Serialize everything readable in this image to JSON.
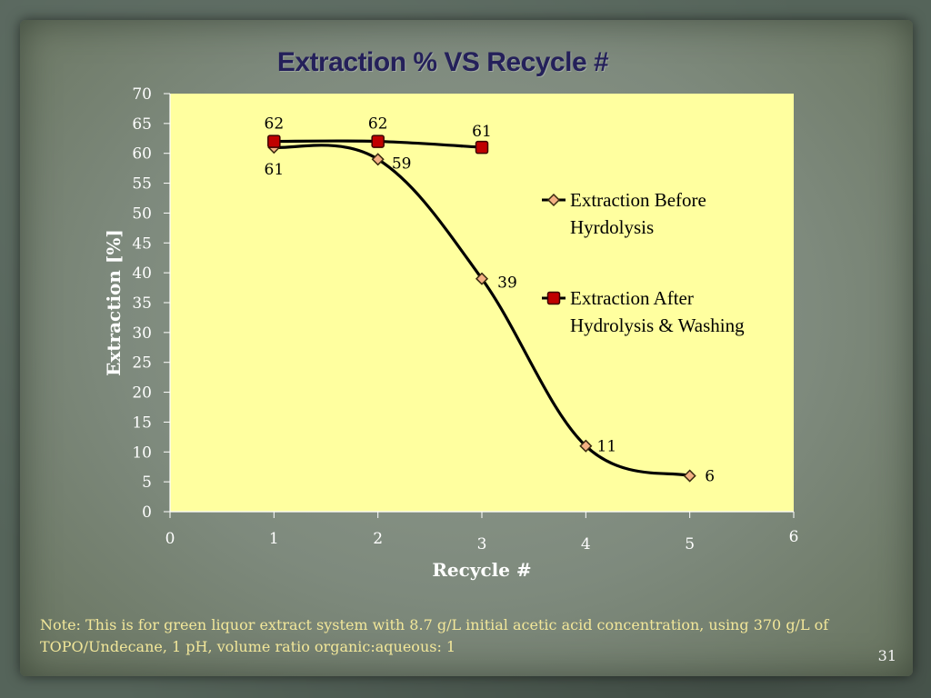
{
  "slide": {
    "note": "Note:  This is for green liquor extract system with 8.7 g/L initial acetic acid concentration, using 370 g/L of TOPO/Undecane, 1 pH, volume ratio organic:aqueous: 1",
    "page_number": "31"
  },
  "chart_data": {
    "type": "line",
    "title": "Extraction % VS Recycle #",
    "xlabel": "Recycle #",
    "ylabel": "Extraction [%]",
    "xlim": [
      0,
      6
    ],
    "ylim": [
      0,
      70
    ],
    "xticks": [
      0,
      1,
      2,
      3,
      4,
      5,
      6
    ],
    "yticks": [
      0,
      5,
      10,
      15,
      20,
      25,
      30,
      35,
      40,
      45,
      50,
      55,
      60,
      65,
      70
    ],
    "grid": false,
    "legend_position": "right",
    "plot_background": "#ffff9f",
    "series": [
      {
        "name": "Extraction Before Hyrdolysis",
        "x": [
          1,
          2,
          3,
          4,
          5
        ],
        "y": [
          61,
          59,
          39,
          11,
          6
        ],
        "labels": [
          "61",
          "59",
          "39",
          "11",
          "6"
        ],
        "marker": "diamond",
        "marker_color": "#f4b183",
        "line_color": "#000000",
        "smooth": true
      },
      {
        "name": "Extraction After Hydrolysis & Washing",
        "x": [
          1,
          2,
          3
        ],
        "y": [
          62,
          62,
          61
        ],
        "labels": [
          "62",
          "62",
          "61"
        ],
        "marker": "square",
        "marker_color": "#c00000",
        "line_color": "#000000",
        "smooth": true
      }
    ],
    "legend": [
      {
        "line1": "Extraction Before",
        "line2": "Hyrdolysis"
      },
      {
        "line1": "Extraction After",
        "line2": "Hydrolysis & Washing"
      }
    ]
  }
}
